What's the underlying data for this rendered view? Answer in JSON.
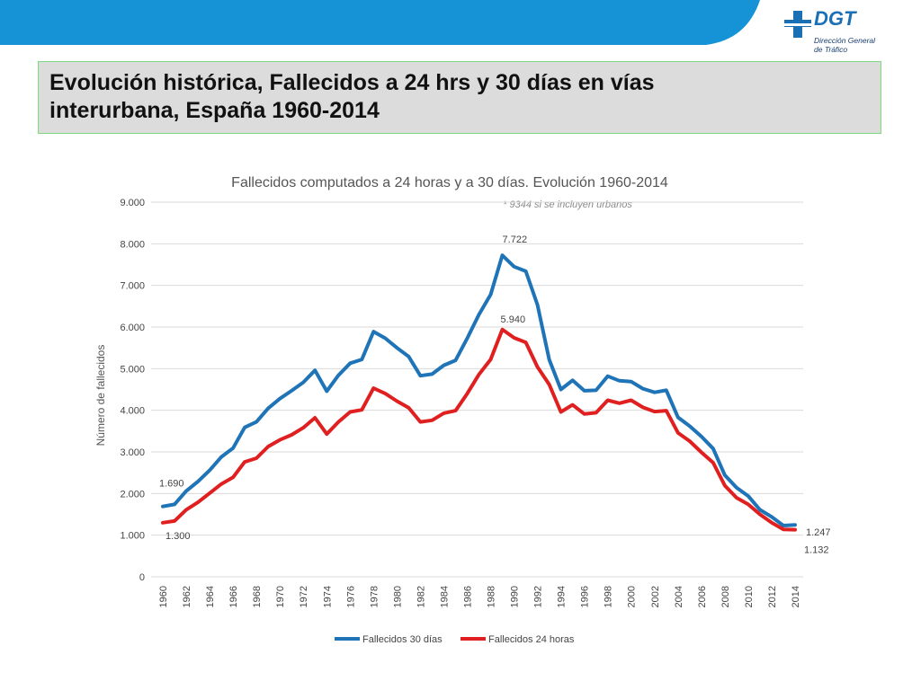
{
  "header": {
    "logo_text": "DGT",
    "logo_sub_lines": [
      "Dirección General",
      "de Tráfico"
    ],
    "title_line1": "Evolución histórica, Fallecidos a 24 hrs y 30 días en vías",
    "title_line2": "interurbana,  España 1960-2014"
  },
  "colors": {
    "band": "#1593d6",
    "series_30": "#1f74b8",
    "series_24": "#e02020"
  },
  "chart_data": {
    "type": "line",
    "title": "Fallecidos computados a 24 horas y a 30 días. Evolución 1960-2014",
    "note": "* 9344 si se incluyen urbanos",
    "ylabel": "Número de fallecidos",
    "xlabel": "",
    "ylim": [
      0,
      9000
    ],
    "yticks": [
      "0",
      "1.000",
      "2.000",
      "3.000",
      "4.000",
      "5.000",
      "6.000",
      "7.000",
      "8.000",
      "9.000"
    ],
    "x": [
      1960,
      1961,
      1962,
      1963,
      1964,
      1965,
      1966,
      1967,
      1968,
      1969,
      1970,
      1971,
      1972,
      1973,
      1974,
      1975,
      1976,
      1977,
      1978,
      1979,
      1980,
      1981,
      1982,
      1983,
      1984,
      1985,
      1986,
      1987,
      1988,
      1989,
      1990,
      1991,
      1992,
      1993,
      1994,
      1995,
      1996,
      1997,
      1998,
      1999,
      2000,
      2001,
      2002,
      2003,
      2004,
      2005,
      2006,
      2007,
      2008,
      2009,
      2010,
      2011,
      2012,
      2013,
      2014
    ],
    "xticks": [
      "1960",
      "1962",
      "1964",
      "1966",
      "1968",
      "1970",
      "1972",
      "1974",
      "1976",
      "1978",
      "1980",
      "1982",
      "1984",
      "1986",
      "1988",
      "1990",
      "1992",
      "1994",
      "1996",
      "1998",
      "2000",
      "2002",
      "2004",
      "2006",
      "2008",
      "2010",
      "2012",
      "2014"
    ],
    "grid": true,
    "legend": "bottom",
    "series": [
      {
        "name": "Fallecidos 30 días",
        "values": [
          1690,
          1740,
          2060,
          2290,
          2560,
          2880,
          3090,
          3590,
          3720,
          4050,
          4280,
          4470,
          4670,
          4960,
          4460,
          4840,
          5130,
          5220,
          5890,
          5730,
          5500,
          5290,
          4830,
          4870,
          5080,
          5200,
          5730,
          6300,
          6780,
          7722,
          7450,
          7340,
          6530,
          5220,
          4500,
          4720,
          4470,
          4480,
          4820,
          4710,
          4690,
          4520,
          4430,
          4480,
          3830,
          3620,
          3370,
          3080,
          2440,
          2140,
          1940,
          1610,
          1440,
          1230,
          1247
        ],
        "labels": [
          {
            "index": 0,
            "text": "1.690"
          },
          {
            "index": 29,
            "text": "7.722"
          },
          {
            "index": 54,
            "text": "1.247"
          }
        ]
      },
      {
        "name": "Fallecidos 24 horas",
        "values": [
          1300,
          1340,
          1610,
          1790,
          2010,
          2230,
          2390,
          2760,
          2850,
          3130,
          3290,
          3410,
          3580,
          3820,
          3430,
          3720,
          3960,
          4010,
          4530,
          4400,
          4220,
          4060,
          3720,
          3760,
          3930,
          3990,
          4400,
          4860,
          5220,
          5940,
          5740,
          5630,
          5040,
          4620,
          3960,
          4130,
          3910,
          3940,
          4240,
          4170,
          4240,
          4070,
          3970,
          3990,
          3460,
          3260,
          2990,
          2740,
          2190,
          1900,
          1740,
          1500,
          1300,
          1140,
          1132
        ],
        "labels": [
          {
            "index": 0,
            "text": "1.300"
          },
          {
            "index": 29,
            "text": "5.940"
          },
          {
            "index": 54,
            "text": "1.132"
          }
        ]
      }
    ]
  }
}
